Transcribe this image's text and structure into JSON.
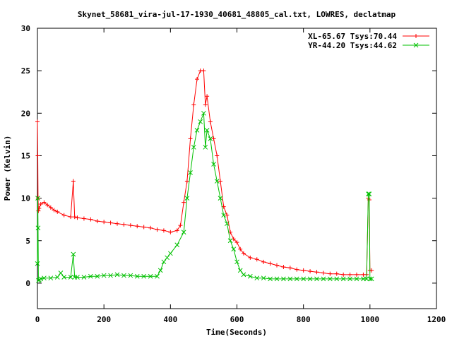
{
  "chart_data": {
    "type": "line",
    "title": "Skynet_58681_vira-jul-17-1930_40681_48805_cal.txt, LOWRES, declatmap",
    "xlabel": "Time(Seconds)",
    "ylabel": "Power (Kelvin)",
    "xlim": [
      0,
      1200
    ],
    "ylim": [
      -3,
      30
    ],
    "x_ticks": [
      0,
      200,
      400,
      600,
      800,
      1000,
      1200
    ],
    "y_ticks": [
      0,
      5,
      10,
      15,
      20,
      25,
      30
    ],
    "legend_position": "top-right",
    "series": [
      {
        "name": "XL-65.67 Tsys:70.44",
        "color": "#ff0000",
        "marker": "plus",
        "x": [
          0,
          1,
          2,
          3,
          5,
          10,
          20,
          30,
          40,
          50,
          60,
          80,
          100,
          108,
          112,
          120,
          140,
          160,
          180,
          200,
          220,
          240,
          260,
          280,
          300,
          320,
          340,
          360,
          380,
          400,
          420,
          430,
          440,
          450,
          460,
          470,
          480,
          490,
          500,
          505,
          510,
          520,
          530,
          540,
          550,
          560,
          570,
          580,
          590,
          600,
          610,
          620,
          640,
          660,
          680,
          700,
          720,
          740,
          760,
          780,
          800,
          820,
          840,
          860,
          880,
          900,
          920,
          940,
          960,
          980,
          990,
          995,
          998,
          1000,
          1005
        ],
        "y": [
          19,
          15,
          10,
          8.5,
          8.8,
          9.3,
          9.5,
          9.2,
          8.9,
          8.6,
          8.4,
          8.0,
          7.8,
          12,
          7.8,
          7.7,
          7.6,
          7.5,
          7.3,
          7.2,
          7.1,
          7.0,
          6.9,
          6.8,
          6.7,
          6.6,
          6.5,
          6.3,
          6.2,
          6.0,
          6.2,
          6.8,
          9.5,
          12,
          17,
          21,
          24,
          25,
          25,
          21,
          22,
          19,
          17,
          15,
          12,
          9,
          8,
          6,
          5.2,
          4.8,
          4.0,
          3.5,
          3.0,
          2.8,
          2.5,
          2.3,
          2.1,
          1.9,
          1.8,
          1.6,
          1.5,
          1.4,
          1.3,
          1.2,
          1.1,
          1.1,
          1.0,
          1.0,
          1.0,
          1.0,
          1.0,
          10,
          9.8,
          1.5,
          1.5
        ]
      },
      {
        "name": "YR-44.20 Tsys:44.62",
        "color": "#00c000",
        "marker": "x",
        "x": [
          0,
          1,
          2,
          3,
          5,
          10,
          20,
          40,
          60,
          70,
          80,
          100,
          108,
          112,
          120,
          140,
          160,
          180,
          200,
          220,
          240,
          260,
          280,
          300,
          320,
          340,
          360,
          370,
          380,
          390,
          400,
          420,
          440,
          450,
          460,
          470,
          480,
          490,
          500,
          505,
          510,
          520,
          530,
          540,
          550,
          560,
          570,
          580,
          590,
          600,
          610,
          620,
          640,
          660,
          680,
          700,
          720,
          740,
          760,
          780,
          800,
          820,
          840,
          860,
          880,
          900,
          920,
          940,
          960,
          980,
          990,
          995,
          998,
          1000,
          1005
        ],
        "y": [
          2.3,
          10,
          6.5,
          0.3,
          0.4,
          0.5,
          0.6,
          0.6,
          0.7,
          1.2,
          0.7,
          0.7,
          3.4,
          0.7,
          0.7,
          0.7,
          0.8,
          0.8,
          0.9,
          0.9,
          1.0,
          0.9,
          0.9,
          0.8,
          0.8,
          0.8,
          0.8,
          1.5,
          2.5,
          3.0,
          3.5,
          4.5,
          6.0,
          10,
          13,
          16,
          18,
          19,
          20,
          16,
          18,
          17,
          14,
          12,
          10,
          8,
          7,
          5,
          4,
          2.5,
          1.5,
          1.0,
          0.8,
          0.6,
          0.6,
          0.5,
          0.5,
          0.5,
          0.5,
          0.5,
          0.5,
          0.5,
          0.5,
          0.5,
          0.5,
          0.5,
          0.5,
          0.5,
          0.5,
          0.5,
          0.5,
          10.5,
          10.5,
          0.5,
          0.5
        ]
      }
    ]
  }
}
